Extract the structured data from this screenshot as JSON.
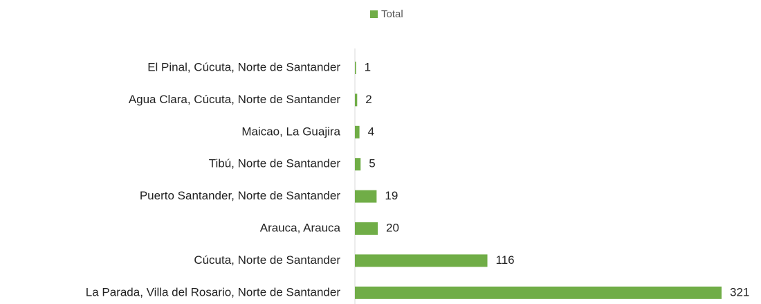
{
  "chart_data": {
    "type": "bar",
    "orientation": "horizontal",
    "categories": [
      "El Pinal, Cúcuta, Norte de Santander",
      "Agua Clara, Cúcuta, Norte de Santander",
      "Maicao, La Guajira",
      "Tibú, Norte de Santander",
      "Puerto Santander, Norte de Santander",
      "Arauca, Arauca",
      "Cúcuta, Norte de Santander",
      "La Parada, Villa del Rosario, Norte de Santander"
    ],
    "series": [
      {
        "name": "Total",
        "color": "#70ad47",
        "values": [
          1,
          2,
          4,
          5,
          19,
          20,
          116,
          321
        ]
      }
    ],
    "legend": "top"
  }
}
